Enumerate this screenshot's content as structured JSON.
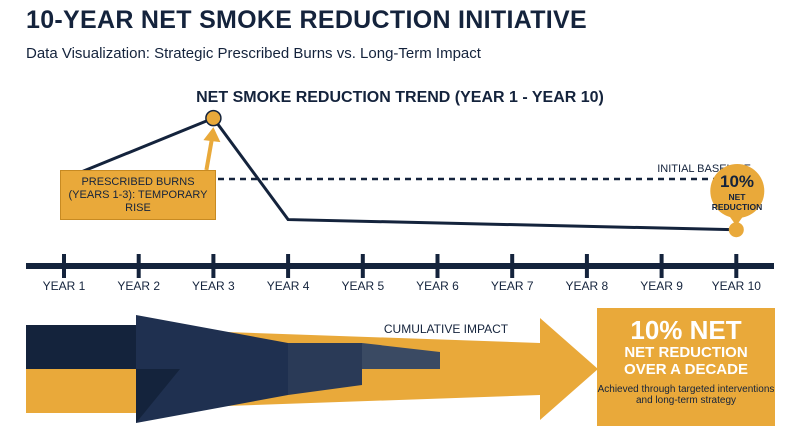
{
  "header": {
    "title": "10-YEAR NET SMOKE REDUCTION INITIATIVE",
    "subtitle": "Data Visualization: Strategic Prescribed Burns vs. Long-Term Impact"
  },
  "colors": {
    "navy": "#14233c",
    "gold": "#e9a93a",
    "white": "#ffffff"
  },
  "chart_data": {
    "type": "line",
    "title": "NET SMOKE REDUCTION TREND (YEAR 1 - YEAR 10)",
    "categories": [
      "YEAR 1",
      "YEAR 2",
      "YEAR 3",
      "YEAR 4",
      "YEAR 5",
      "YEAR 6",
      "YEAR 7",
      "YEAR 8",
      "YEAR 9",
      "YEAR 10"
    ],
    "series": [
      {
        "values": [
          100,
          null,
          112,
          92,
          null,
          null,
          null,
          null,
          null,
          90
        ]
      }
    ],
    "baseline": {
      "label": "INITIAL BASELINE",
      "value": 100
    },
    "ylim": [
      86,
      114
    ],
    "grid": false,
    "annotations": [
      {
        "text": "PRESCRIBED BURNS (YEARS 1-3): TEMPORARY RISE",
        "category": "YEAR 3"
      },
      {
        "percent": "10%",
        "label": "NET REDUCTION",
        "category": "YEAR 10"
      }
    ]
  },
  "impact": {
    "label": "CUMULATIVE IMPACT",
    "main": "10% NET",
    "sub_line1": "NET REDUCTION",
    "sub_line2": "OVER A DECADE",
    "desc": "Achieved through targeted interventions and long-term strategy"
  }
}
